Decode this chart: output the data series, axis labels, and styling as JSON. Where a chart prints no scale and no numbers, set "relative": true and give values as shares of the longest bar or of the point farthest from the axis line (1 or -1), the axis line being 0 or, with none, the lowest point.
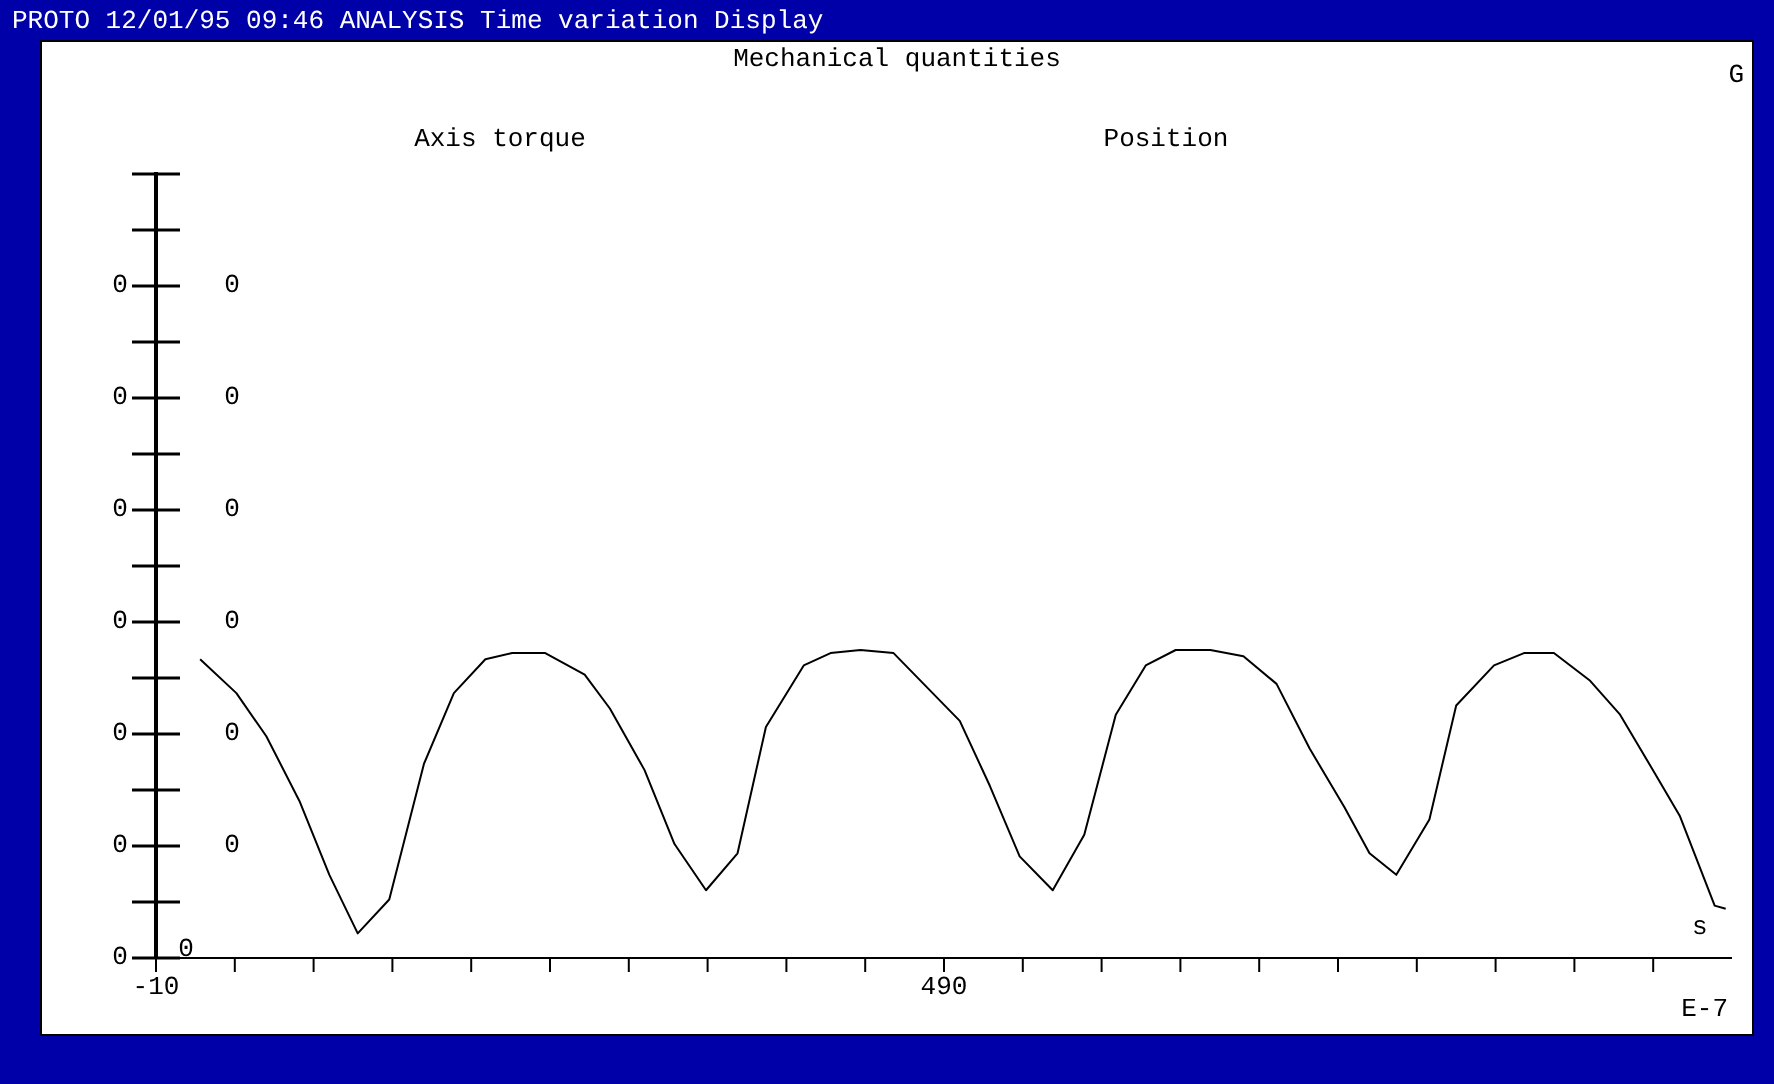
{
  "chart_data": {
    "type": "line",
    "title": "Mechanical quantities",
    "xlabel": "s",
    "relative": true,
    "annotations": [
      "PROTO 12/01/95 09:46 ANALYSIS Time variation Display",
      "G",
      "Axis torque",
      "Position",
      "E-7",
      "0",
      "0",
      "0",
      "0",
      "0",
      "0",
      "0",
      "0",
      "0",
      "0",
      "0",
      "0",
      "0",
      "0"
    ],
    "x": [
      18,
      41,
      60,
      81,
      100,
      118,
      138,
      160,
      179,
      199,
      216,
      237,
      262,
      278,
      300,
      319,
      339,
      359,
      377,
      401,
      418,
      437,
      458,
      500,
      519,
      538,
      559,
      579,
      599,
      618,
      637,
      659,
      680,
      701,
      722,
      744,
      760,
      777,
      798,
      815,
      839,
      858,
      877,
      900,
      919,
      941,
      957,
      979,
      986
    ],
    "series": [
      {
        "color": "#000000",
        "values": [
          0.97,
          0.86,
          0.72,
          0.51,
          0.27,
          0.08,
          0.19,
          0.63,
          0.86,
          0.97,
          0.99,
          0.99,
          0.92,
          0.81,
          0.61,
          0.37,
          0.22,
          0.34,
          0.75,
          0.95,
          0.99,
          1,
          0.99,
          0.77,
          0.56,
          0.33,
          0.22,
          0.4,
          0.79,
          0.95,
          1,
          1,
          0.98,
          0.89,
          0.68,
          0.49,
          0.34,
          0.27,
          0.45,
          0.82,
          0.95,
          0.99,
          0.99,
          0.9,
          0.79,
          0.6,
          0.46,
          0.17,
          0.16
        ]
      }
    ],
    "xlim": [
      -10,
      990
    ],
    "xticks": [
      {
        "value": -10,
        "label": "-10"
      },
      {
        "value": 40,
        "label": null
      },
      {
        "value": 90,
        "label": null
      },
      {
        "value": 140,
        "label": null
      },
      {
        "value": 190,
        "label": null
      },
      {
        "value": 240,
        "label": null
      },
      {
        "value": 290,
        "label": null
      },
      {
        "value": 340,
        "label": null
      },
      {
        "value": 390,
        "label": null
      },
      {
        "value": 440,
        "label": null
      },
      {
        "value": 490,
        "label": "490"
      },
      {
        "value": 540,
        "label": null
      },
      {
        "value": 590,
        "label": null
      },
      {
        "value": 640,
        "label": null
      },
      {
        "value": 690,
        "label": null
      },
      {
        "value": 740,
        "label": null
      },
      {
        "value": 790,
        "label": null
      },
      {
        "value": 840,
        "label": null
      },
      {
        "value": 890,
        "label": null
      },
      {
        "value": 940,
        "label": null
      }
    ]
  }
}
